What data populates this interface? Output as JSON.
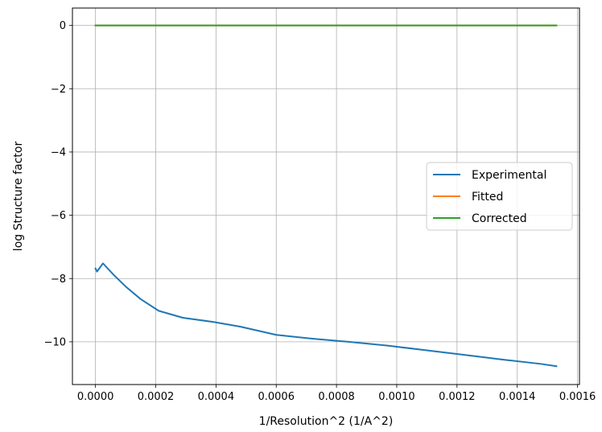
{
  "chart_data": {
    "type": "line",
    "title": "",
    "xlabel": "1/Resolution^2 (1/A^2)",
    "ylabel": "log Structure factor",
    "xlim": [
      -7.65e-05,
      0.0016065
    ],
    "ylim": [
      -11.35,
      0.55
    ],
    "xticks": [
      0.0,
      0.0002,
      0.0004,
      0.0006,
      0.0008,
      0.001,
      0.0012,
      0.0014,
      0.0016
    ],
    "xtick_labels": [
      "0.0000",
      "0.0002",
      "0.0004",
      "0.0006",
      "0.0008",
      "0.0010",
      "0.0012",
      "0.0014",
      "0.0016"
    ],
    "yticks": [
      0,
      -2,
      -4,
      -6,
      -8,
      -10
    ],
    "ytick_labels": [
      "0",
      "−2",
      "−4",
      "−6",
      "−8",
      "−10"
    ],
    "grid": true,
    "legend_position": "center-right",
    "series": [
      {
        "name": "Experimental",
        "color": "#1f77b4",
        "x": [
          0.0,
          5e-06,
          2.5e-05,
          6e-05,
          0.0001,
          0.00015,
          0.00021,
          0.00029,
          0.00039,
          0.00048,
          0.0006,
          0.00072,
          0.00084,
          0.00097,
          0.0011,
          0.00123,
          0.00136,
          0.00148,
          0.00153
        ],
        "y": [
          -7.68,
          -7.78,
          -7.52,
          -7.88,
          -8.25,
          -8.65,
          -9.02,
          -9.24,
          -9.37,
          -9.52,
          -9.78,
          -9.9,
          -10.0,
          -10.12,
          -10.27,
          -10.42,
          -10.57,
          -10.7,
          -10.77
        ]
      },
      {
        "name": "Fitted",
        "color": "#ff7f0e",
        "x": [
          0.0,
          0.00153
        ],
        "y": [
          0.0,
          0.0
        ]
      },
      {
        "name": "Corrected",
        "color": "#2ca02c",
        "x": [
          0.0,
          0.00153
        ],
        "y": [
          0.0,
          0.0
        ]
      }
    ]
  }
}
